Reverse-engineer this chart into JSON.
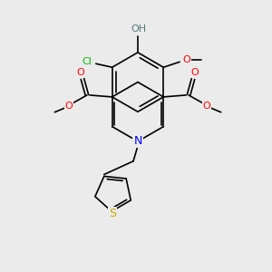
{
  "bg_color": "#ebebeb",
  "atom_colors": {
    "C": "#000000",
    "O": "#ff0000",
    "N": "#0000ff",
    "S": "#ccaa00",
    "Cl": "#00bb00",
    "H": "#557777"
  },
  "lw": 1.2,
  "fontsize": 7.5
}
